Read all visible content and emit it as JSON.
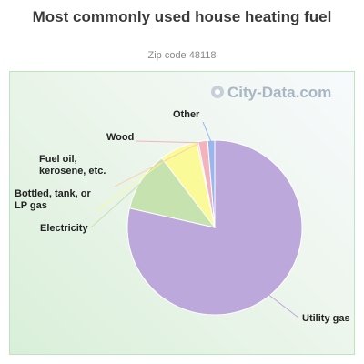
{
  "header": {
    "title": "Most commonly used house heating fuel",
    "subtitle": "Zip code 48118"
  },
  "watermark": "City-Data.com",
  "chart_data": {
    "type": "pie",
    "title": "Most commonly used house heating fuel",
    "subtitle": "Zip code 48118",
    "slices": [
      {
        "label": "Utility gas",
        "value": 78.0,
        "color": "#bda8db"
      },
      {
        "label": "Electricity",
        "value": 11.0,
        "color": "#c6e2ae"
      },
      {
        "label": "Bottled, tank, or LP gas",
        "value": 7.0,
        "color": "#fbfa98"
      },
      {
        "label": "Fuel oil, kerosene, etc.",
        "value": 0.3,
        "color": "#f6d3ab"
      },
      {
        "label": "Wood",
        "value": 1.7,
        "color": "#f3b3bd"
      },
      {
        "label": "Other",
        "value": 1.3,
        "color": "#9ab6ef"
      }
    ]
  }
}
